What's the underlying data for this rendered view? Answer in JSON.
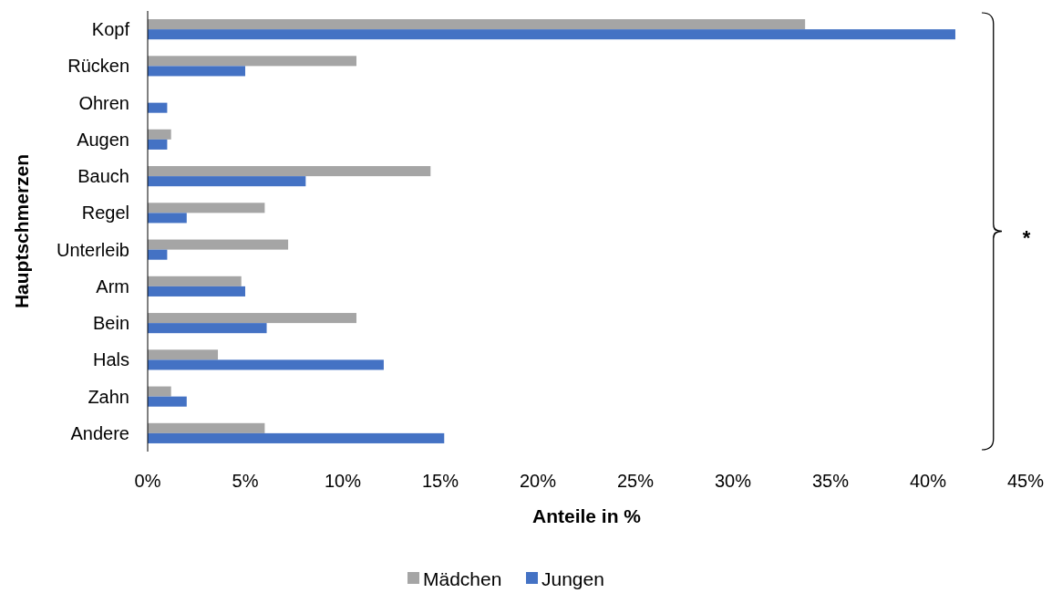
{
  "chart_data": {
    "type": "bar",
    "orientation": "horizontal",
    "xlabel": "Anteile in %",
    "ylabel": "Hauptschmerzen",
    "categories": [
      "Kopf",
      "Rücken",
      "Ohren",
      "Augen",
      "Bauch",
      "Regel",
      "Unterleib",
      "Arm",
      "Bein",
      "Hals",
      "Zahn",
      "Andere"
    ],
    "series": [
      {
        "name": "Mädchen",
        "color": "#a5a5a5",
        "values": [
          33.7,
          10.7,
          0,
          1.2,
          14.5,
          6.0,
          7.2,
          4.8,
          10.7,
          3.6,
          1.2,
          6.0
        ]
      },
      {
        "name": "Jungen",
        "color": "#4472c4",
        "values": [
          41.4,
          5.0,
          1.0,
          1.0,
          8.1,
          2.0,
          1.0,
          5.0,
          6.1,
          12.1,
          2.0,
          15.2
        ]
      }
    ],
    "xlim": [
      0,
      45
    ],
    "xticks": [
      {
        "value": 0,
        "label": "0%"
      },
      {
        "value": 5,
        "label": "5%"
      },
      {
        "value": 10,
        "label": "10%"
      },
      {
        "value": 15,
        "label": "15%"
      },
      {
        "value": 20,
        "label": "20%"
      },
      {
        "value": 25,
        "label": "25%"
      },
      {
        "value": 30,
        "label": "30%"
      },
      {
        "value": 35,
        "label": "35%"
      },
      {
        "value": 40,
        "label": "40%"
      },
      {
        "value": 45,
        "label": "45%"
      }
    ],
    "annotations": [
      "*"
    ],
    "legend": "bottom",
    "grid": false
  }
}
